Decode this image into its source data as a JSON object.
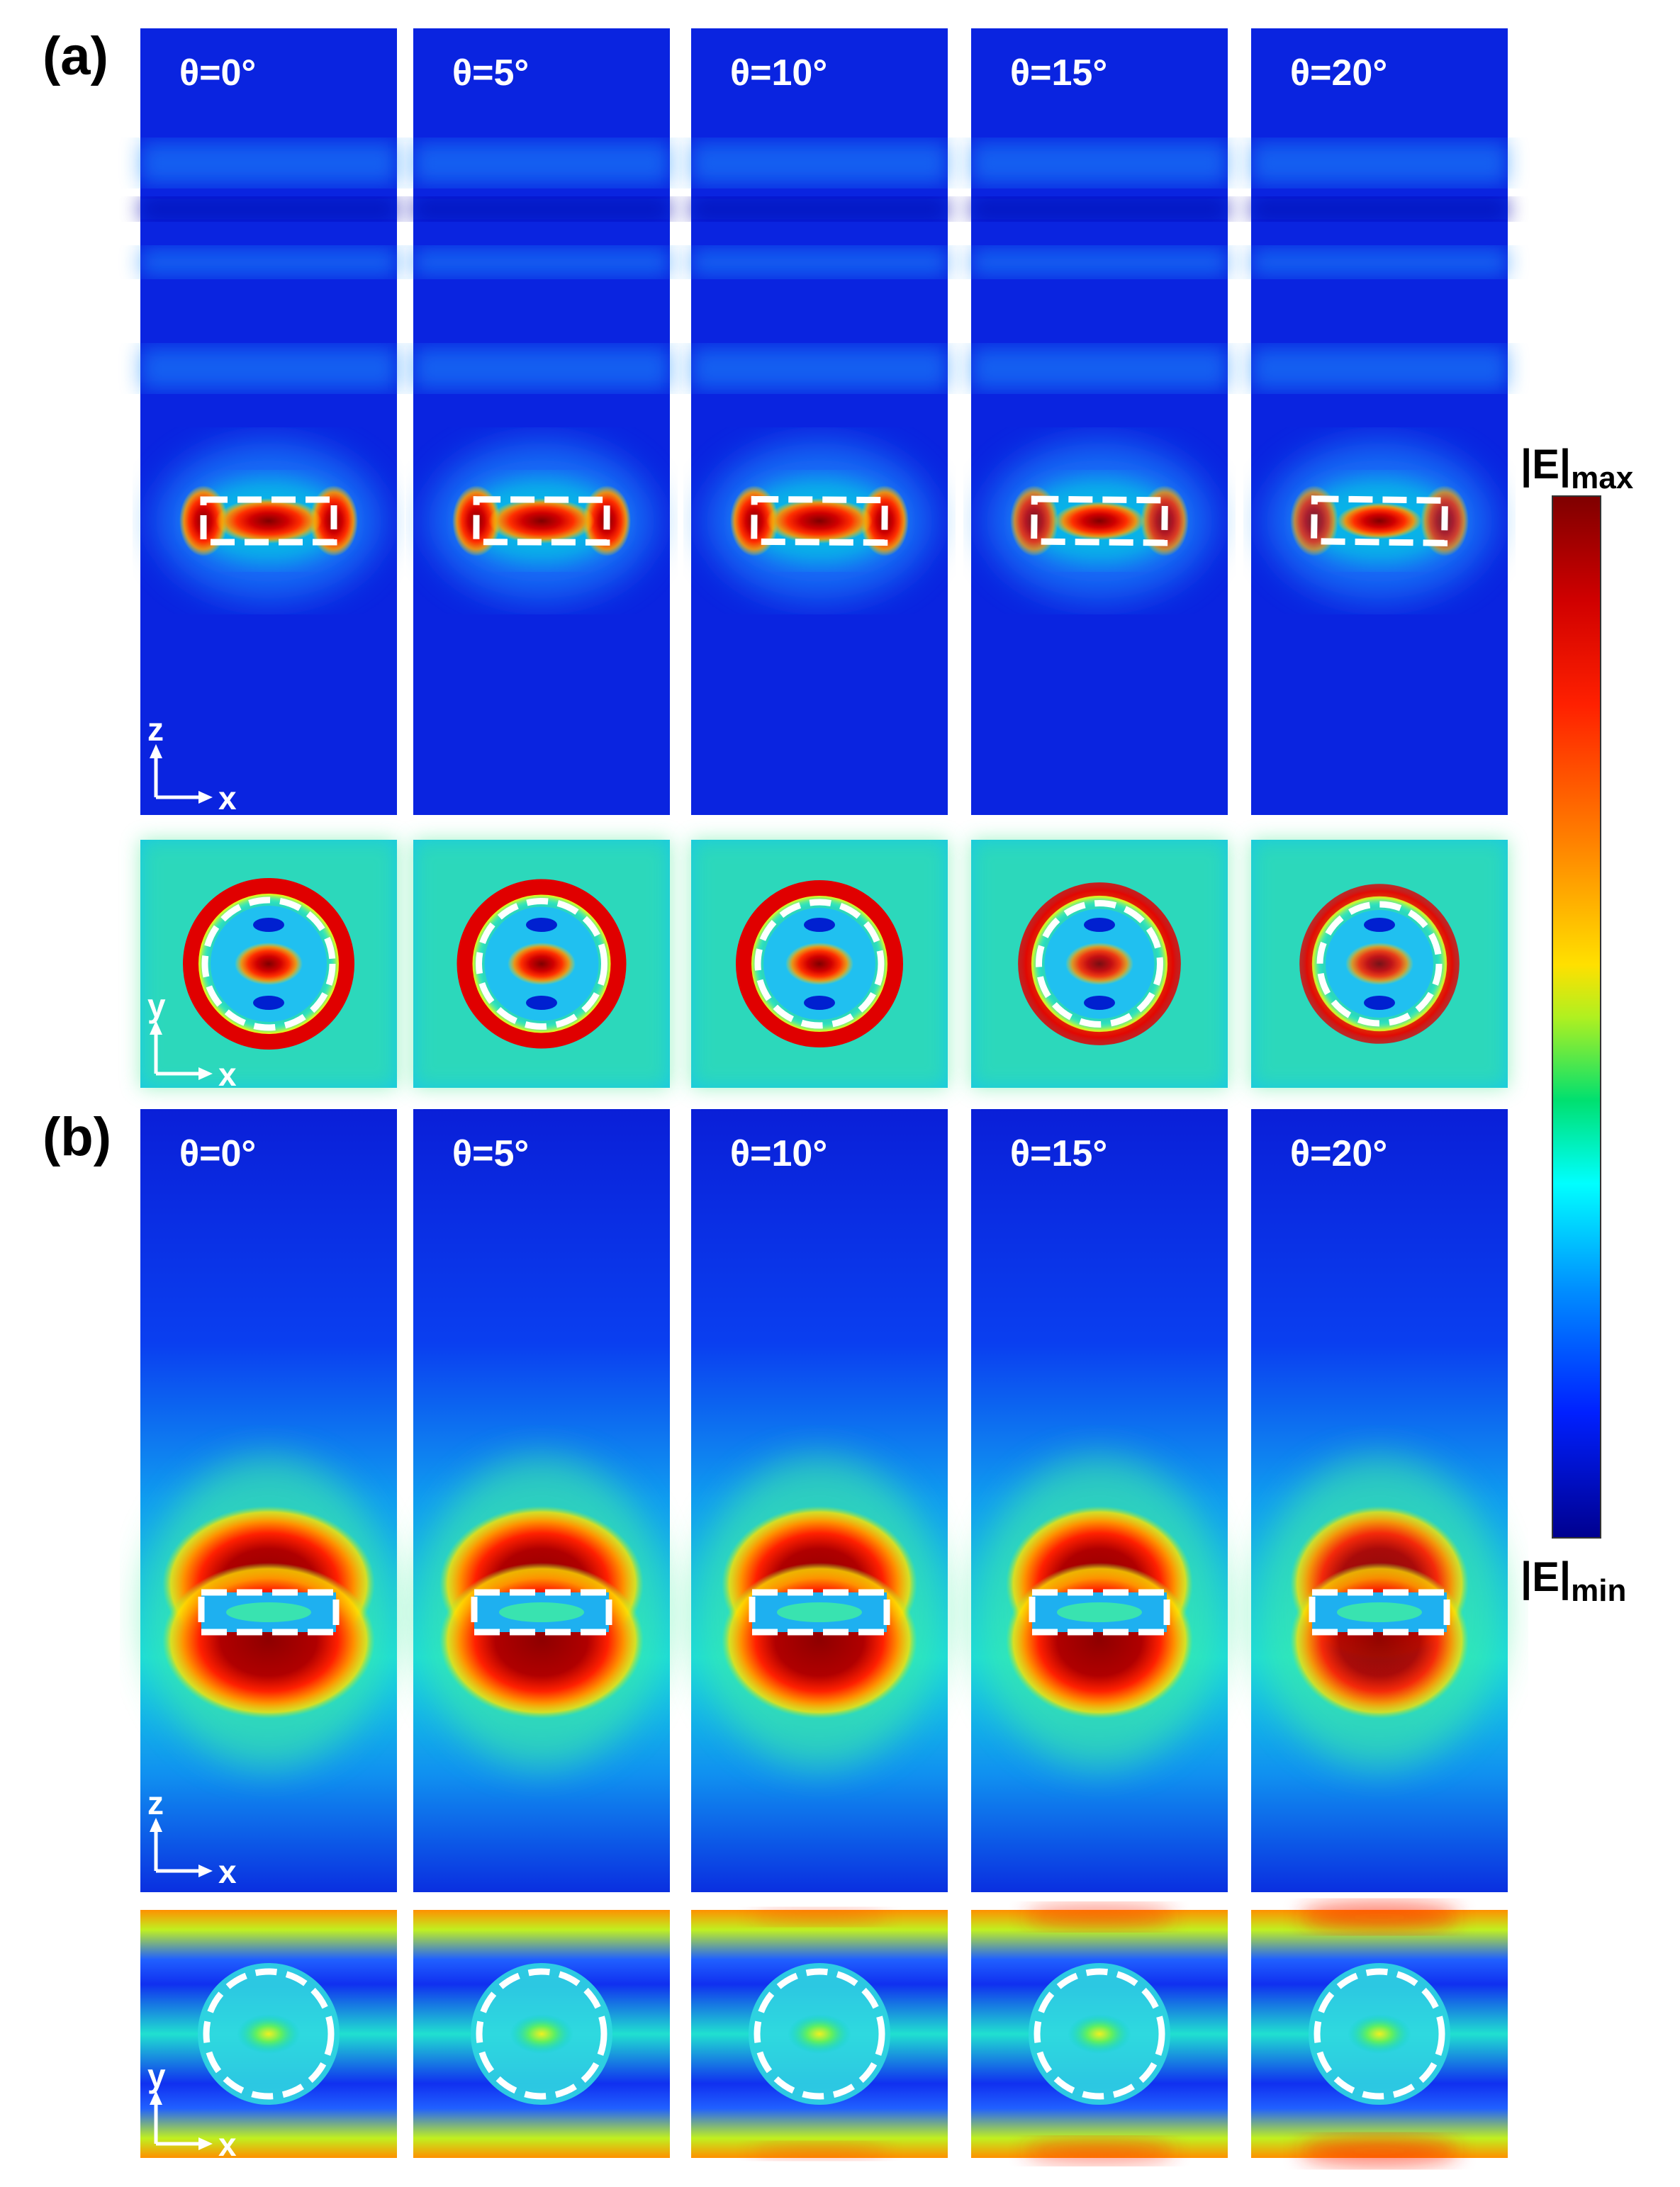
{
  "panels": [
    {
      "label": "(a)",
      "mode": "a",
      "angles": [
        "θ=0°",
        "θ=5°",
        "θ=10°",
        "θ=15°",
        "θ=20°"
      ],
      "side_axes": {
        "vertical": "z",
        "horizontal": "x"
      },
      "top_axes": {
        "vertical": "y",
        "horizontal": "x"
      }
    },
    {
      "label": "(b)",
      "mode": "b",
      "angles": [
        "θ=0°",
        "θ=5°",
        "θ=10°",
        "θ=15°",
        "θ=20°"
      ],
      "side_axes": {
        "vertical": "z",
        "horizontal": "x"
      },
      "top_axes": {
        "vertical": "y",
        "horizontal": "x"
      }
    }
  ],
  "field_strength": {
    "a_side": [
      1.0,
      1.0,
      1.0,
      0.85,
      0.8
    ],
    "a_top": [
      1.0,
      1.0,
      1.0,
      0.85,
      0.8
    ],
    "b_side": [
      1.0,
      1.0,
      1.0,
      1.0,
      0.95
    ],
    "b_top": [
      0.0,
      0.1,
      0.3,
      0.45,
      0.55
    ]
  },
  "colorbar": {
    "max_label": "|E|",
    "max_sub": "max",
    "min_label": "|E|",
    "min_sub": "min",
    "colors": [
      "#7f0000",
      "#ff0000",
      "#ff8000",
      "#ffff00",
      "#00e070",
      "#00ffff",
      "#0080ff",
      "#0000ff",
      "#00008f"
    ]
  }
}
